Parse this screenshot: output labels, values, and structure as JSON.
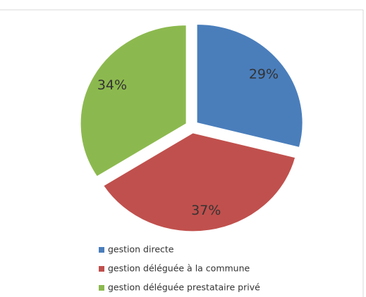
{
  "chart_data": {
    "type": "pie",
    "categories": [
      "gestion directe",
      "gestion déléguée à la commune",
      "gestion déléguée prestataire privé"
    ],
    "values": [
      29,
      37,
      34
    ],
    "value_labels": [
      "29%",
      "37%",
      "34%"
    ],
    "colors": [
      "#4a7ebb",
      "#c0504d",
      "#8cb94f"
    ]
  }
}
